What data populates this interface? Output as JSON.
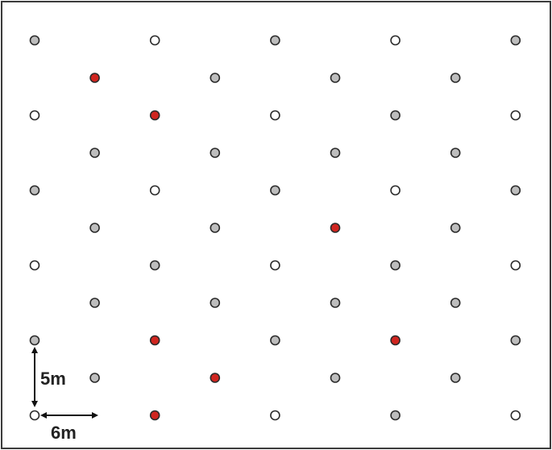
{
  "diagram": {
    "spacing": {
      "vertical_label": "5m",
      "horizontal_label": "6m"
    },
    "legend_colors": {
      "white": "#ffffff",
      "grey": "#bdbdbd",
      "red": "#d0251f",
      "outline": "#2b2b2b",
      "frame": "#3a3a3a",
      "arrow": "#111111"
    },
    "rows": [
      [
        "grey",
        null,
        "white",
        null,
        "grey",
        null,
        "white",
        null,
        "grey"
      ],
      [
        null,
        "red",
        null,
        "grey",
        null,
        "grey",
        null,
        "grey",
        null
      ],
      [
        "white",
        null,
        "red",
        null,
        "white",
        null,
        "grey",
        null,
        "white"
      ],
      [
        null,
        "grey",
        null,
        "grey",
        null,
        "grey",
        null,
        "grey",
        null
      ],
      [
        "grey",
        null,
        "white",
        null,
        "grey",
        null,
        "white",
        null,
        "grey"
      ],
      [
        null,
        "grey",
        null,
        "grey",
        null,
        "red",
        null,
        "grey",
        null
      ],
      [
        "white",
        null,
        "grey",
        null,
        "white",
        null,
        "grey",
        null,
        "white"
      ],
      [
        null,
        "grey",
        null,
        "grey",
        null,
        "grey",
        null,
        "grey",
        null
      ],
      [
        "grey",
        null,
        "red",
        null,
        "grey",
        null,
        "red",
        null,
        "grey"
      ],
      [
        null,
        "grey",
        null,
        "red",
        null,
        "grey",
        null,
        "grey",
        null
      ],
      [
        "white",
        null,
        "red",
        null,
        "white",
        null,
        "grey",
        null,
        "white"
      ]
    ]
  }
}
